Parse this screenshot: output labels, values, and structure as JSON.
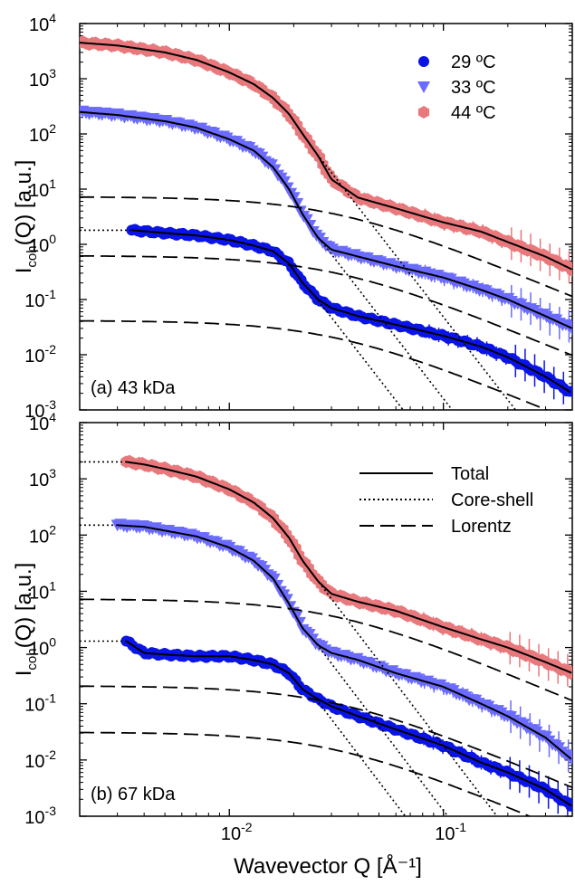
{
  "figure": {
    "xlabel": "Wavevector Q [Å⁻¹]",
    "ylabel_main": "I",
    "ylabel_sub": "coh",
    "ylabel_rest": "(Q) [a.u.]",
    "x_scale": "log",
    "y_scale": "log",
    "xlim": [
      0.002,
      0.4
    ],
    "ylim_top": [
      0.001,
      10000
    ],
    "ylim_bottom": [
      0.001,
      10000
    ],
    "x_ticks": [
      {
        "base": "10",
        "exp": "-2",
        "value": 0.01
      },
      {
        "base": "10",
        "exp": "-1",
        "value": 0.1
      }
    ],
    "y_ticks": [
      {
        "base": "10",
        "exp": "4",
        "value": 10000
      },
      {
        "base": "10",
        "exp": "3",
        "value": 1000
      },
      {
        "base": "10",
        "exp": "2",
        "value": 100
      },
      {
        "base": "10",
        "exp": "1",
        "value": 10
      },
      {
        "base": "10",
        "exp": "0",
        "value": 1
      },
      {
        "base": "10",
        "exp": "-1",
        "value": 0.1
      },
      {
        "base": "10",
        "exp": "-2",
        "value": 0.01
      },
      {
        "base": "10",
        "exp": "-3",
        "value": 0.001
      }
    ]
  },
  "chart_data": [
    {
      "type": "scatter",
      "panel_label": "(a) 43 kDa",
      "legend_placement": "top-right",
      "series": [
        {
          "name": "29 ºC",
          "marker": "circle",
          "color": "#0a14e6",
          "x": [
            0.0035,
            0.005,
            0.007,
            0.01,
            0.013,
            0.016,
            0.019,
            0.022,
            0.026,
            0.03,
            0.04,
            0.06,
            0.1,
            0.15,
            0.2,
            0.3,
            0.4
          ],
          "y": [
            1.8,
            1.6,
            1.45,
            1.2,
            0.95,
            0.75,
            0.45,
            0.2,
            0.1,
            0.07,
            0.05,
            0.035,
            0.022,
            0.014,
            0.009,
            0.004,
            0.002
          ]
        },
        {
          "name": "33 ºC",
          "marker": "triangle-down",
          "color": "#6b6bff",
          "x": [
            0.002,
            0.003,
            0.005,
            0.007,
            0.01,
            0.013,
            0.016,
            0.019,
            0.022,
            0.026,
            0.03,
            0.04,
            0.06,
            0.1,
            0.15,
            0.2,
            0.3,
            0.4
          ],
          "y": [
            250,
            220,
            170,
            130,
            80,
            50,
            25,
            10,
            3.5,
            1.3,
            0.8,
            0.6,
            0.4,
            0.25,
            0.15,
            0.1,
            0.05,
            0.03
          ]
        },
        {
          "name": "44 ºC",
          "marker": "hexagon",
          "color": "#e8787c",
          "x": [
            0.002,
            0.003,
            0.005,
            0.007,
            0.01,
            0.013,
            0.016,
            0.019,
            0.022,
            0.026,
            0.03,
            0.04,
            0.06,
            0.1,
            0.15,
            0.2,
            0.3,
            0.4
          ],
          "y": [
            4500,
            4000,
            3000,
            2200,
            1300,
            800,
            450,
            230,
            100,
            40,
            15,
            7,
            4.5,
            2.5,
            1.7,
            1.1,
            0.6,
            0.35
          ]
        }
      ]
    },
    {
      "type": "scatter",
      "panel_label": "(b) 67 kDa",
      "legend_placement": "top-right",
      "legend": [
        {
          "label": "Total",
          "line": "solid"
        },
        {
          "label": "Core-shell",
          "line": "dotted"
        },
        {
          "label": "Lorentz",
          "line": "dashed"
        }
      ],
      "series": [
        {
          "name": "29 ºC",
          "marker": "circle",
          "color": "#0a14e6",
          "x": [
            0.0033,
            0.004,
            0.005,
            0.007,
            0.01,
            0.013,
            0.016,
            0.019,
            0.022,
            0.026,
            0.03,
            0.04,
            0.06,
            0.1,
            0.15,
            0.2,
            0.3,
            0.4
          ],
          "y": [
            1.3,
            0.8,
            0.75,
            0.7,
            0.7,
            0.6,
            0.5,
            0.35,
            0.18,
            0.12,
            0.09,
            0.06,
            0.035,
            0.018,
            0.009,
            0.006,
            0.003,
            0.0015
          ]
        },
        {
          "name": "33 ºC",
          "marker": "triangle-down",
          "color": "#6b6bff",
          "x": [
            0.003,
            0.004,
            0.005,
            0.007,
            0.01,
            0.013,
            0.016,
            0.019,
            0.022,
            0.026,
            0.03,
            0.04,
            0.06,
            0.1,
            0.15,
            0.2,
            0.3,
            0.4
          ],
          "y": [
            150,
            140,
            120,
            95,
            60,
            35,
            17,
            6,
            2.2,
            1.1,
            0.8,
            0.6,
            0.35,
            0.2,
            0.1,
            0.06,
            0.025,
            0.01
          ]
        },
        {
          "name": "44 ºC",
          "marker": "hexagon",
          "color": "#e8787c",
          "x": [
            0.0033,
            0.004,
            0.005,
            0.007,
            0.01,
            0.013,
            0.016,
            0.019,
            0.022,
            0.026,
            0.03,
            0.04,
            0.06,
            0.1,
            0.15,
            0.2,
            0.3,
            0.4
          ],
          "y": [
            2000,
            1800,
            1500,
            1100,
            650,
            380,
            200,
            90,
            35,
            15,
            9,
            6.5,
            4.5,
            2.3,
            1.4,
            1.0,
            0.55,
            0.35
          ]
        }
      ]
    }
  ]
}
